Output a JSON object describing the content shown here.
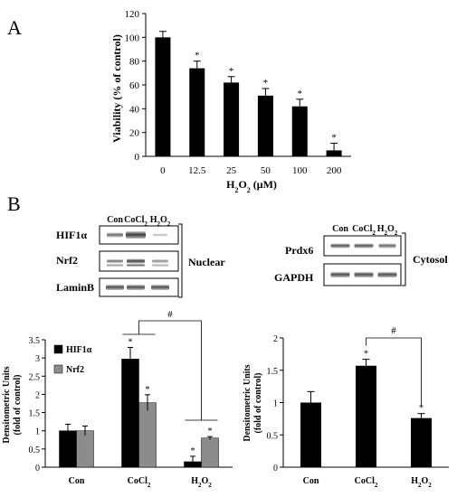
{
  "panels": {
    "A": {
      "label": "A"
    },
    "B": {
      "label": "B"
    }
  },
  "chart_data": [
    {
      "type": "bar",
      "panel": "A",
      "categories": [
        "0",
        "12.5",
        "25",
        "50",
        "100",
        "200"
      ],
      "values": [
        100,
        74,
        62,
        51,
        42,
        5
      ],
      "errors": [
        5,
        6,
        5,
        6,
        6,
        6
      ],
      "significance": [
        "",
        "*",
        "*",
        "*",
        "*",
        "*"
      ],
      "xlabel": "H₂O₂ (μM)",
      "ylabel": "Viability (% of control)",
      "ylim": [
        0,
        120
      ],
      "yticks": [
        "0",
        "20",
        "40",
        "60",
        "80",
        "100",
        "120"
      ],
      "bar_color": "#000000"
    },
    {
      "type": "bar",
      "panel": "B-left",
      "categories": [
        "Con",
        "CoCl₂",
        "H₂O₂"
      ],
      "series": [
        {
          "name": "HIF1α",
          "values": [
            1.0,
            2.97,
            0.15
          ],
          "errors": [
            0.18,
            0.32,
            0.15
          ],
          "significance": [
            "",
            "*",
            "*"
          ],
          "color": "#000000"
        },
        {
          "name": "Nrf2",
          "values": [
            1.0,
            1.77,
            0.8
          ],
          "errors": [
            0.13,
            0.22,
            0.04
          ],
          "significance": [
            "",
            "*",
            "*"
          ],
          "color": "#8c8c8c"
        }
      ],
      "ylabel_line1": "Densitometric Units",
      "ylabel_line2": "(fold of control)",
      "ylim": [
        0,
        3.5
      ],
      "yticks": [
        "0",
        "0.5",
        "1",
        "1.5",
        "2",
        "2.5",
        "3",
        "3.5"
      ],
      "legend": "top-left",
      "comparison_mark": "#"
    },
    {
      "type": "bar",
      "panel": "B-right",
      "categories": [
        "Con",
        "CoCl₂",
        "H₂O₂"
      ],
      "values": [
        1.0,
        1.57,
        0.76
      ],
      "errors": [
        0.17,
        0.1,
        0.07
      ],
      "significance": [
        "",
        "*",
        "*"
      ],
      "ylabel_line1": "Densitometric Units",
      "ylabel_line2": "(fold of control)",
      "ylim": [
        0,
        2
      ],
      "yticks": [
        "0",
        "0.5",
        "1",
        "1.5",
        "2"
      ],
      "bar_color": "#000000",
      "comparison_mark": "#"
    }
  ],
  "blots": {
    "nuclear": {
      "lanes": [
        "Con",
        "CoCl₂",
        "H₂O₂"
      ],
      "rows": [
        "HIF1α",
        "Nrf2",
        "LaminB"
      ],
      "fraction_label": "Nuclear"
    },
    "cytosol": {
      "lanes": [
        "Con",
        "CoCl₂",
        "H₂O₂"
      ],
      "rows": [
        "Prdx6",
        "GAPDH"
      ],
      "fraction_label": "Cytosol"
    }
  }
}
